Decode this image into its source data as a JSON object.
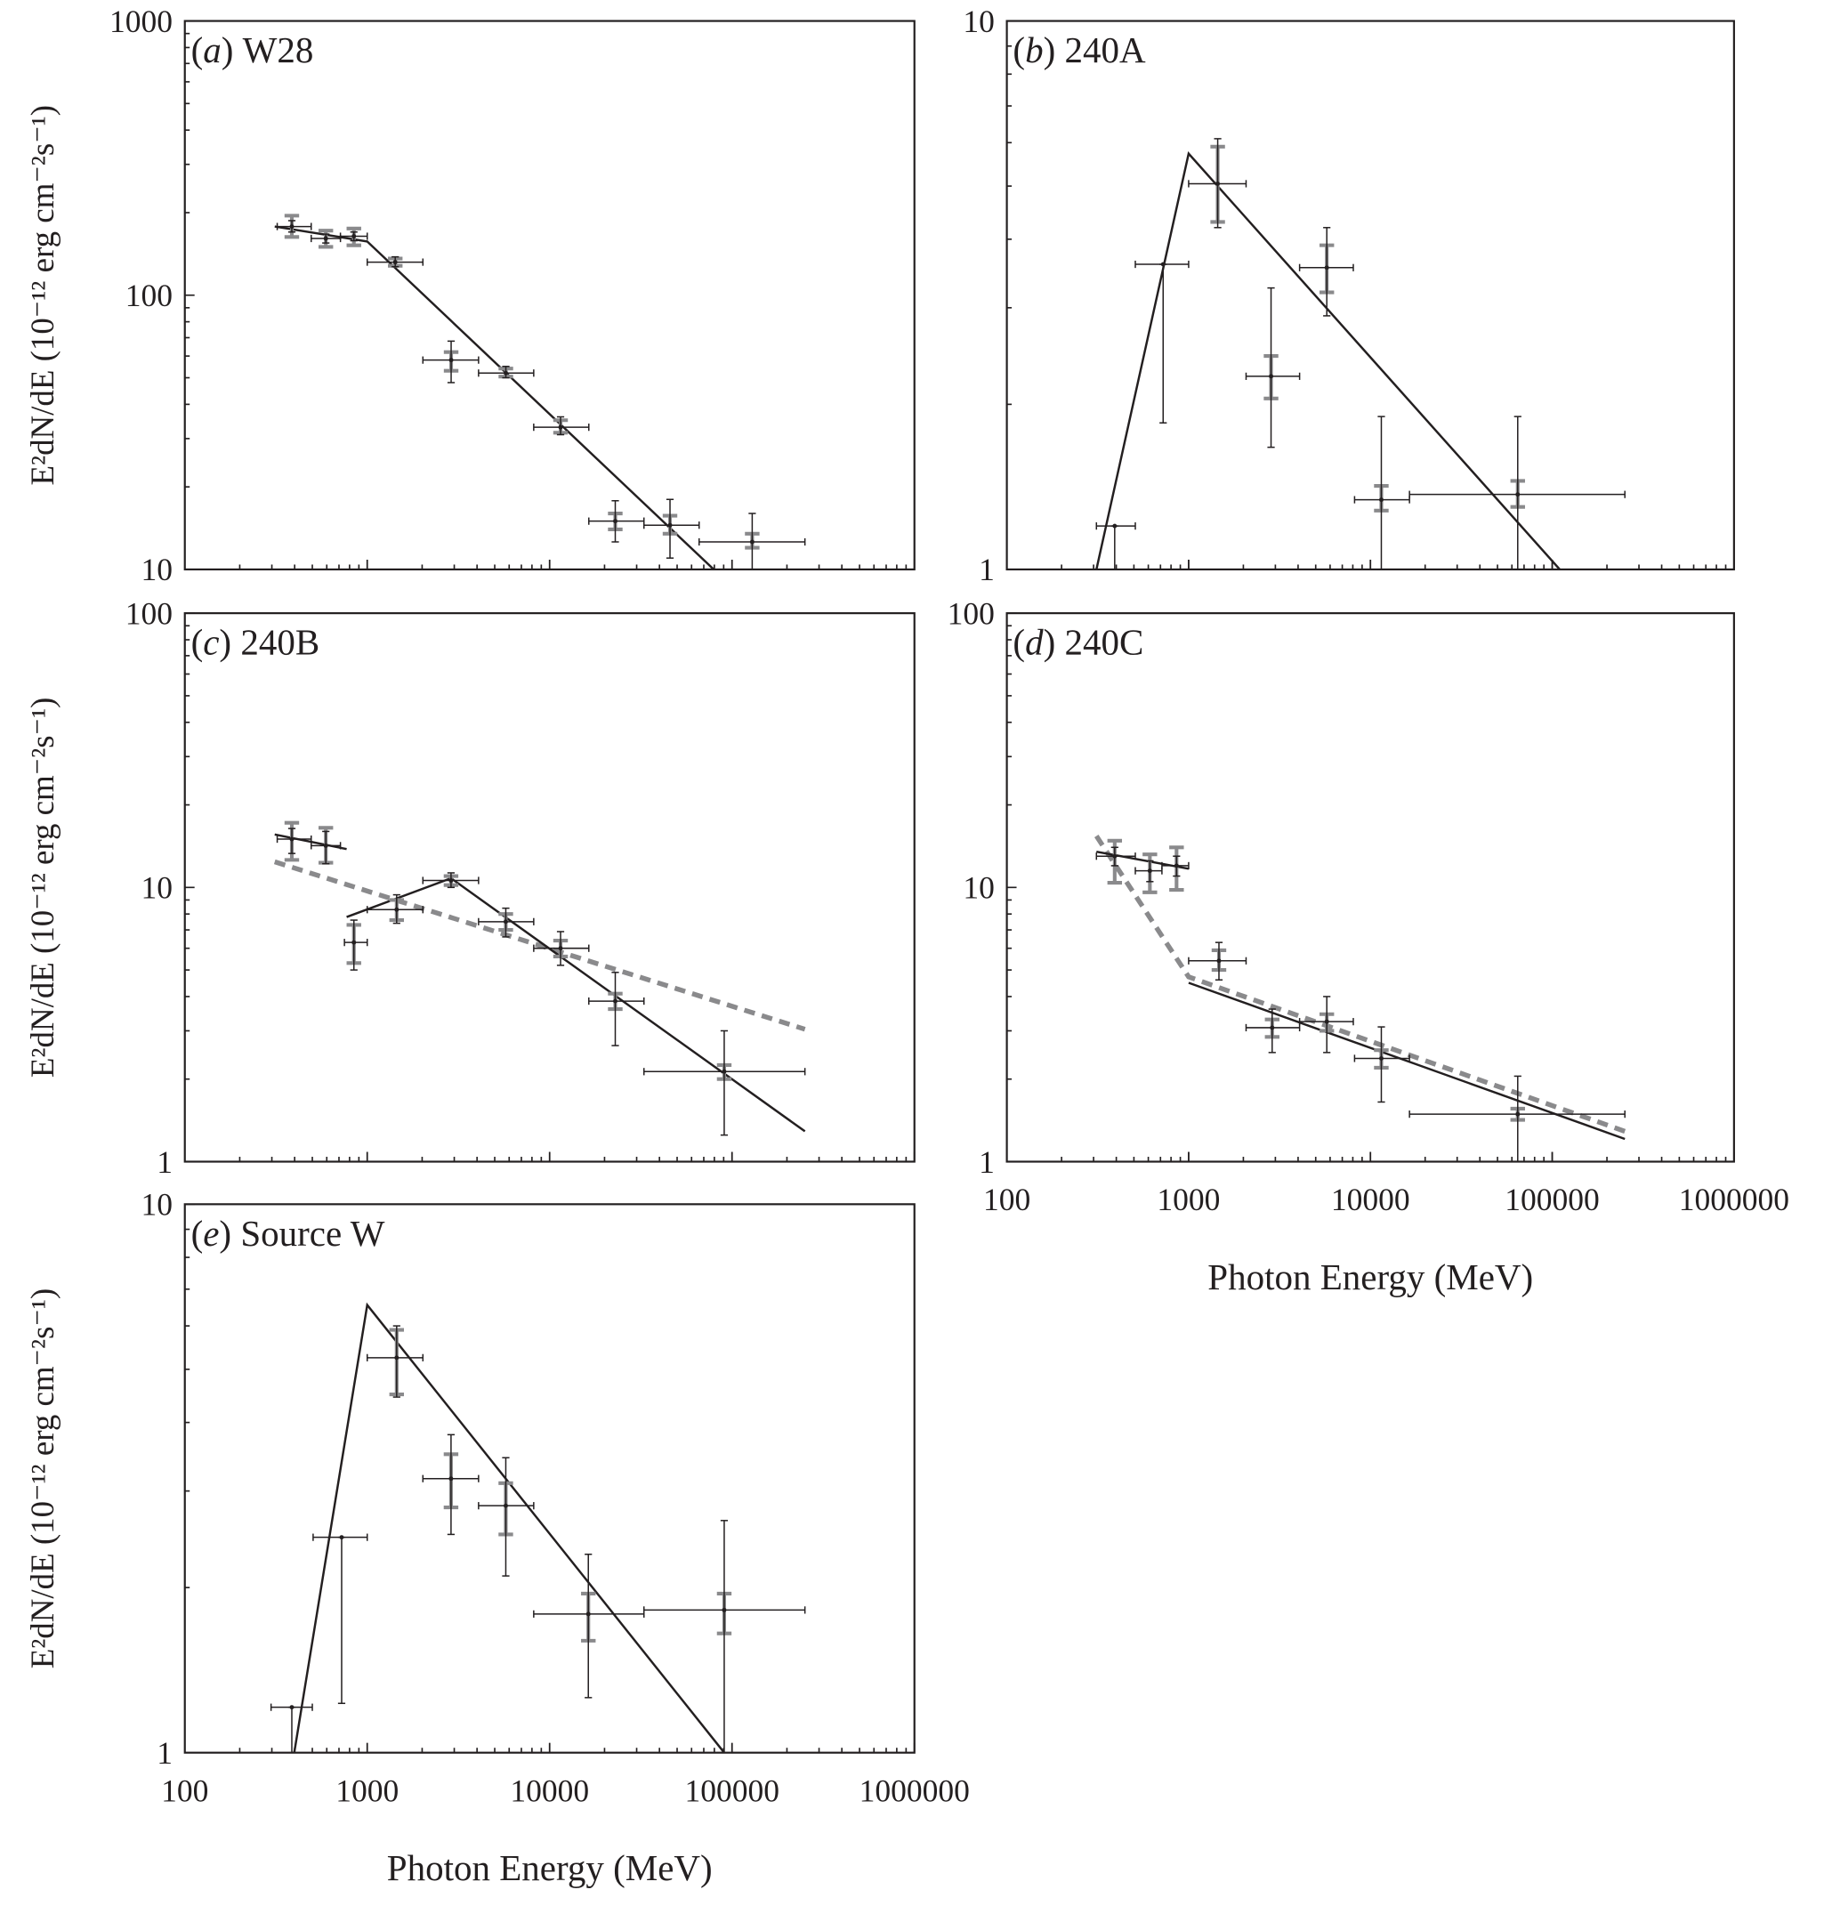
{
  "y_label": "E²dN/dE (10⁻¹² erg cm⁻²s⁻¹)",
  "x_label": "Photon Energy (MeV)",
  "colors": {
    "model": "#231f20",
    "alt_model": "#8a8a8c",
    "stat_error": "#231f20",
    "sys_error": "#8a8a8c"
  },
  "chart_data": [
    {
      "type": "scatter",
      "panel": "a",
      "letter": "a",
      "name": "W28",
      "xscale": "log",
      "yscale": "log",
      "xlim": [
        100,
        1000000
      ],
      "ylim": [
        10,
        1000
      ],
      "yticks": [
        "10",
        "100",
        "1000"
      ],
      "xticks": [],
      "points": [
        {
          "e": 386,
          "e_lo": 321,
          "e_hi": 493,
          "f": 178,
          "stat": [
            170,
            187
          ],
          "sys": [
            163,
            195
          ]
        },
        {
          "e": 593,
          "e_lo": 493,
          "e_hi": 713,
          "f": 161,
          "stat": [
            155,
            167
          ],
          "sys": [
            150,
            172
          ]
        },
        {
          "e": 845,
          "e_lo": 713,
          "e_hi": 1000,
          "f": 164,
          "stat": [
            158,
            170
          ],
          "sys": [
            152,
            175
          ]
        },
        {
          "e": 1424,
          "e_lo": 1000,
          "e_hi": 2019,
          "f": 132,
          "stat": [
            127,
            138
          ],
          "sys": [
            128,
            136
          ]
        },
        {
          "e": 2884,
          "e_lo": 2019,
          "e_hi": 4077,
          "f": 58,
          "stat": [
            48,
            68
          ],
          "sys": [
            53,
            62
          ]
        },
        {
          "e": 5754,
          "e_lo": 4077,
          "e_hi": 8180,
          "f": 52,
          "stat": [
            50,
            55
          ],
          "sys": [
            50.5,
            54
          ]
        },
        {
          "e": 11480,
          "e_lo": 8180,
          "e_hi": 16400,
          "f": 33,
          "stat": [
            31,
            36
          ],
          "sys": [
            31.5,
            35
          ]
        },
        {
          "e": 22900,
          "e_lo": 16400,
          "e_hi": 32900,
          "f": 15,
          "stat": [
            12.6,
            17.8
          ],
          "sys": [
            14,
            16
          ]
        },
        {
          "e": 45700,
          "e_lo": 32900,
          "e_hi": 66000,
          "f": 14.5,
          "stat": [
            11,
            18
          ],
          "sys": [
            13.5,
            15.7
          ]
        },
        {
          "e": 129000,
          "e_lo": 66000,
          "e_hi": 251000,
          "f": 12.6,
          "stat": [
            10,
            16
          ],
          "sys": [
            12,
            13.5
          ]
        }
      ],
      "model": [
        [
          [
            311,
            178
          ],
          [
            1000,
            157
          ],
          [
            79400,
            10
          ]
        ]
      ],
      "alt_model": []
    },
    {
      "type": "scatter",
      "panel": "b",
      "letter": "b",
      "name": "240A",
      "xscale": "log",
      "yscale": "log",
      "xlim": [
        100,
        1000000
      ],
      "ylim": [
        1,
        10
      ],
      "yticks": [
        "1",
        "10"
      ],
      "xticks": [],
      "points": [
        {
          "e": 392,
          "e_lo": 311,
          "e_hi": 509,
          "f": 1.2,
          "stat": [
            1,
            1.2
          ],
          "sys": null
        },
        {
          "e": 724,
          "e_lo": 509,
          "e_hi": 1000,
          "f": 3.6,
          "stat": [
            1.85,
            3.6
          ],
          "sys": null
        },
        {
          "e": 1445,
          "e_lo": 1000,
          "e_hi": 2070,
          "f": 5.05,
          "stat": [
            4.2,
            6.1
          ],
          "sys": [
            4.3,
            5.9
          ]
        },
        {
          "e": 2840,
          "e_lo": 2070,
          "e_hi": 4077,
          "f": 2.25,
          "stat": [
            1.67,
            3.26
          ],
          "sys": [
            2.05,
            2.45
          ]
        },
        {
          "e": 5754,
          "e_lo": 4077,
          "e_hi": 8050,
          "f": 3.55,
          "stat": [
            2.9,
            4.2
          ],
          "sys": [
            3.2,
            3.9
          ]
        },
        {
          "e": 11480,
          "e_lo": 8180,
          "e_hi": 16400,
          "f": 1.34,
          "stat": [
            1,
            1.9
          ],
          "sys": [
            1.28,
            1.42
          ]
        },
        {
          "e": 64600,
          "e_lo": 16400,
          "e_hi": 251000,
          "f": 1.37,
          "stat": [
            1,
            1.9
          ],
          "sys": [
            1.3,
            1.45
          ]
        }
      ],
      "model": [
        [
          [
            311,
            1
          ],
          [
            1000,
            5.73
          ],
          [
            110000,
            1
          ]
        ]
      ],
      "alt_model": []
    },
    {
      "type": "scatter",
      "panel": "c",
      "letter": "c",
      "name": "240B",
      "xscale": "log",
      "yscale": "log",
      "xlim": [
        100,
        1000000
      ],
      "ylim": [
        1,
        100
      ],
      "yticks": [
        "1",
        "10",
        "100"
      ],
      "xticks": [],
      "points": [
        {
          "e": 386,
          "e_lo": 321,
          "e_hi": 493,
          "f": 15.0,
          "stat": [
            13.3,
            16.4
          ],
          "sys": [
            12.6,
            17.2
          ]
        },
        {
          "e": 593,
          "e_lo": 493,
          "e_hi": 713,
          "f": 14.2,
          "stat": [
            12.2,
            16
          ],
          "sys": [
            12.3,
            16.5
          ]
        },
        {
          "e": 845,
          "e_lo": 750,
          "e_hi": 1000,
          "f": 6.3,
          "stat": [
            5.0,
            7.6
          ],
          "sys": [
            5.3,
            7.3
          ]
        },
        {
          "e": 1450,
          "e_lo": 1000,
          "e_hi": 2019,
          "f": 8.3,
          "stat": [
            7.4,
            9.4
          ],
          "sys": [
            7.6,
            9.0
          ]
        },
        {
          "e": 2880,
          "e_lo": 2019,
          "e_hi": 4077,
          "f": 10.6,
          "stat": [
            10.0,
            11.3
          ],
          "sys": [
            10.2,
            11.0
          ]
        },
        {
          "e": 5750,
          "e_lo": 4077,
          "e_hi": 8180,
          "f": 7.5,
          "stat": [
            6.6,
            8.4
          ],
          "sys": [
            7.0,
            8.0
          ]
        },
        {
          "e": 11480,
          "e_lo": 8180,
          "e_hi": 16400,
          "f": 6.0,
          "stat": [
            5.2,
            6.9
          ],
          "sys": [
            5.6,
            6.4
          ]
        },
        {
          "e": 22900,
          "e_lo": 16400,
          "e_hi": 32900,
          "f": 3.85,
          "stat": [
            2.65,
            4.9
          ],
          "sys": [
            3.6,
            4.1
          ]
        },
        {
          "e": 90600,
          "e_lo": 32900,
          "e_hi": 251000,
          "f": 2.13,
          "stat": [
            1.25,
            3.0
          ],
          "sys": [
            2.0,
            2.25
          ]
        }
      ],
      "model": [
        [
          [
            311,
            15.6
          ],
          [
            771,
            13.8
          ]
        ],
        [
          [
            771,
            7.8
          ],
          [
            2880,
            10.8
          ],
          [
            251000,
            1.29
          ]
        ]
      ],
      "alt_model": [
        [
          [
            311,
            12.4
          ],
          [
            251000,
            3.04
          ]
        ]
      ]
    },
    {
      "type": "scatter",
      "panel": "d",
      "letter": "d",
      "name": "240C",
      "xscale": "log",
      "yscale": "log",
      "xlim": [
        100,
        1000000
      ],
      "ylim": [
        1,
        100
      ],
      "yticks": [
        "1",
        "10",
        "100"
      ],
      "xticks": [
        "100",
        "1000",
        "10000",
        "100000",
        "1000000"
      ],
      "points": [
        {
          "e": 392,
          "e_lo": 311,
          "e_hi": 509,
          "f": 13.0,
          "stat": [
            12,
            14
          ],
          "sys": [
            10.4,
            14.8
          ]
        },
        {
          "e": 612,
          "e_lo": 509,
          "e_hi": 713,
          "f": 11.5,
          "stat": [
            10.5,
            12.5
          ],
          "sys": [
            9.6,
            13.2
          ]
        },
        {
          "e": 858,
          "e_lo": 713,
          "e_hi": 1000,
          "f": 12.0,
          "stat": [
            11,
            13
          ],
          "sys": [
            9.8,
            14
          ]
        },
        {
          "e": 1468,
          "e_lo": 1000,
          "e_hi": 2070,
          "f": 5.4,
          "stat": [
            4.6,
            6.3
          ],
          "sys": [
            5.0,
            5.9
          ]
        },
        {
          "e": 2880,
          "e_lo": 2070,
          "e_hi": 4077,
          "f": 3.08,
          "stat": [
            2.5,
            3.6
          ],
          "sys": [
            2.85,
            3.3
          ]
        },
        {
          "e": 5754,
          "e_lo": 4077,
          "e_hi": 8050,
          "f": 3.24,
          "stat": [
            2.5,
            4.0
          ],
          "sys": [
            3.0,
            3.45
          ]
        },
        {
          "e": 11480,
          "e_lo": 8180,
          "e_hi": 16400,
          "f": 2.38,
          "stat": [
            1.65,
            3.1
          ],
          "sys": [
            2.2,
            2.55
          ]
        },
        {
          "e": 64600,
          "e_lo": 16400,
          "e_hi": 251000,
          "f": 1.49,
          "stat": [
            1,
            2.05
          ],
          "sys": [
            1.42,
            1.56
          ]
        }
      ],
      "model": [
        [
          [
            311,
            13.5
          ],
          [
            1000,
            11.7
          ]
        ],
        [
          [
            1000,
            4.49
          ],
          [
            251000,
            1.21
          ]
        ]
      ],
      "alt_model": [
        [
          [
            311,
            15.4
          ],
          [
            1000,
            4.72
          ],
          [
            251000,
            1.29
          ]
        ]
      ]
    },
    {
      "type": "scatter",
      "panel": "e",
      "letter": "e",
      "name": "Source W",
      "xscale": "log",
      "yscale": "log",
      "xlim": [
        100,
        1000000
      ],
      "ylim": [
        1,
        10
      ],
      "yticks": [
        "1",
        "10"
      ],
      "xticks": [
        "100",
        "1000",
        "10000",
        "100000",
        "1000000"
      ],
      "points": [
        {
          "e": 386,
          "e_lo": 297,
          "e_hi": 500,
          "f": 1.21,
          "stat": [
            1,
            1.21
          ],
          "sys": null
        },
        {
          "e": 724,
          "e_lo": 505,
          "e_hi": 1000,
          "f": 2.47,
          "stat": [
            1.23,
            2.47
          ],
          "sys": null
        },
        {
          "e": 1450,
          "e_lo": 1000,
          "e_hi": 2019,
          "f": 5.25,
          "stat": [
            4.45,
            6.0
          ],
          "sys": [
            4.5,
            5.9
          ]
        },
        {
          "e": 2880,
          "e_lo": 2019,
          "e_hi": 4077,
          "f": 3.16,
          "stat": [
            2.5,
            3.8
          ],
          "sys": [
            2.8,
            3.5
          ]
        },
        {
          "e": 5750,
          "e_lo": 4077,
          "e_hi": 8180,
          "f": 2.82,
          "stat": [
            2.1,
            3.45
          ],
          "sys": [
            2.5,
            3.1
          ]
        },
        {
          "e": 16300,
          "e_lo": 8180,
          "e_hi": 32900,
          "f": 1.79,
          "stat": [
            1.26,
            2.3
          ],
          "sys": [
            1.6,
            1.95
          ]
        },
        {
          "e": 90600,
          "e_lo": 32900,
          "e_hi": 251000,
          "f": 1.82,
          "stat": [
            1,
            2.65
          ],
          "sys": [
            1.65,
            1.95
          ]
        }
      ],
      "model": [
        [
          [
            398,
            1
          ],
          [
            1000,
            6.55
          ],
          [
            90600,
            1
          ]
        ]
      ],
      "alt_model": []
    }
  ]
}
